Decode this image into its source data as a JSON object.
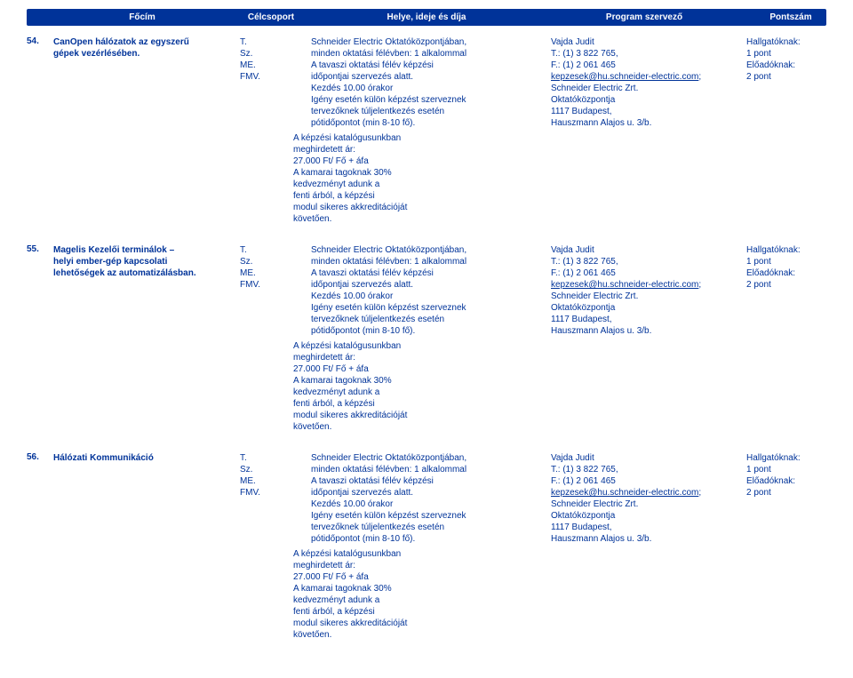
{
  "header": {
    "col_title": "Főcím",
    "col_group": "Célcsoport",
    "col_place": "Helye, ideje és díja",
    "col_org": "Program szervező",
    "col_score": "Pontszám"
  },
  "group": {
    "l1": "T.",
    "l2": "Sz.",
    "l3": "ME.",
    "l4": "FMV."
  },
  "place": {
    "l1": "Schneider Electric Oktatóközpontjában,",
    "l2": "minden oktatási félévben: 1 alkalommal",
    "l3": "A tavaszi oktatási félév képzési",
    "l4": "időpontjai szervezés alatt.",
    "l5": "Kezdés 10.00 órakor",
    "l6": "Igény esetén külön képzést szerveznek",
    "l7": "tervezőknek túljelentkezés esetén",
    "l8": "pótidőpontot (min 8-10 fő)."
  },
  "org": {
    "l1": "Vajda Judit",
    "l2": "T.: (1) 3 822 765,",
    "l3": "F.: (1) 2 061 465",
    "email": "kepzesek@hu.schneider-electric.com",
    "l4b": ";",
    "l5": "Schneider Electric Zrt.",
    "l6": "Oktatóközpontja",
    "l7": "1117 Budapest,",
    "l8": "Hauszmann Alajos u. 3/b."
  },
  "score": {
    "l1": "Hallgatóknak:",
    "l2": "1 pont",
    "l3": "Előadóknak:",
    "l4": "2 pont"
  },
  "catalog": {
    "l1": "A képzési katalógusunkban",
    "l2": "meghirdetett ár:",
    "l3": "27.000 Ft/ Fő + áfa",
    "l4": "A kamarai tagoknak 30%",
    "l5": "kedvezményt adunk a",
    "l6": "fenti árból, a képzési",
    "l7": "modul sikeres akkreditációját",
    "l8": "követően."
  },
  "rows": {
    "r1": {
      "num": "54.",
      "title_l1": "CanOpen hálózatok az egyszerű",
      "title_l2": "gépek vezérlésében."
    },
    "r2": {
      "num": "55.",
      "title_l1": "Magelis Kezelői terminálok –",
      "title_l2": "helyi ember-gép kapcsolati",
      "title_l3": "lehetőségek az automatizálásban."
    },
    "r3": {
      "num": "56.",
      "title_l1": "Hálózati Kommunikáció"
    }
  }
}
